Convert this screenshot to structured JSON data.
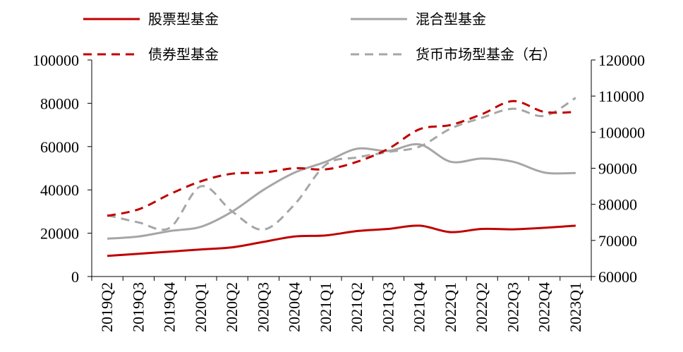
{
  "chart_data": {
    "type": "line",
    "title": "",
    "categories": [
      "2019Q2",
      "2019Q3",
      "2019Q4",
      "2020Q1",
      "2020Q2",
      "2020Q3",
      "2020Q4",
      "2021Q1",
      "2021Q2",
      "2021Q3",
      "2021Q4",
      "2022Q1",
      "2022Q2",
      "2022Q3",
      "2022Q4",
      "2023Q1"
    ],
    "ylim_left": [
      0,
      100000
    ],
    "yticks_left": [
      0,
      20000,
      40000,
      60000,
      80000,
      100000
    ],
    "ylim_right": [
      60000,
      120000
    ],
    "yticks_right": [
      60000,
      70000,
      80000,
      90000,
      100000,
      110000,
      120000
    ],
    "series": [
      {
        "name": "股票型基金",
        "axis": "left",
        "style": "solid",
        "color": "#c00000",
        "values": [
          9500,
          10500,
          11500,
          12500,
          13500,
          16000,
          18500,
          19000,
          21000,
          22000,
          23500,
          20500,
          22000,
          21800,
          22500,
          23500
        ]
      },
      {
        "name": "混合型基金",
        "axis": "left",
        "style": "solid",
        "color": "#a6a6a6",
        "values": [
          17500,
          18500,
          21000,
          23000,
          30000,
          40000,
          48000,
          53000,
          59000,
          58000,
          61000,
          53000,
          54500,
          53000,
          48000,
          47800
        ]
      },
      {
        "name": "债券型基金",
        "axis": "left",
        "style": "dashed",
        "color": "#c00000",
        "values": [
          28000,
          31000,
          38000,
          44000,
          47500,
          48000,
          50000,
          49500,
          53000,
          59000,
          68000,
          70000,
          75000,
          81000,
          76000,
          76000
        ]
      },
      {
        "name": "货币市场型基金（右）",
        "axis": "right",
        "style": "dashed",
        "color": "#a6a6a6",
        "values": [
          77000,
          75000,
          73500,
          85000,
          78000,
          73000,
          80000,
          91000,
          93000,
          94500,
          96000,
          101000,
          104000,
          106500,
          104500,
          109500
        ]
      }
    ],
    "legend": {
      "position": "top",
      "entries": [
        {
          "label": "股票型基金",
          "style": "solid",
          "color": "#c00000"
        },
        {
          "label": "混合型基金",
          "style": "solid",
          "color": "#a6a6a6"
        },
        {
          "label": "债券型基金",
          "style": "dashed",
          "color": "#c00000"
        },
        {
          "label": "货币市场型基金（右）",
          "style": "dashed",
          "color": "#a6a6a6"
        }
      ]
    },
    "grid": false
  }
}
